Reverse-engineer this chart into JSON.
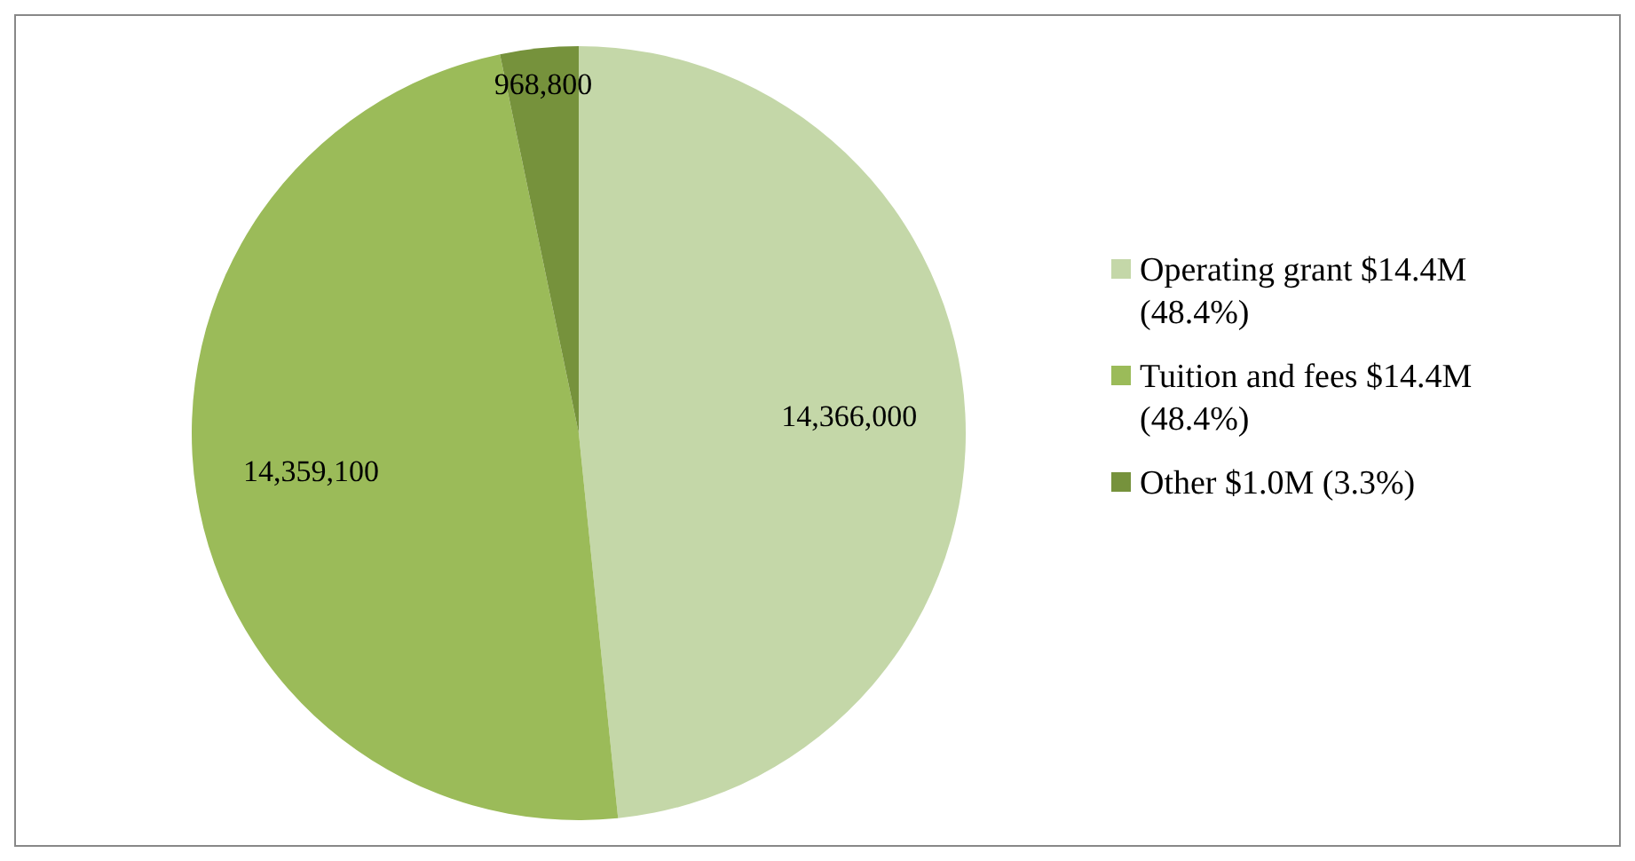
{
  "chart_data": {
    "type": "pie",
    "categories": [
      "Operating grant $14.4M (48.4%)",
      "Tuition and fees $14.4M (48.4%)",
      "Other $1.0M (3.3%)"
    ],
    "values": [
      14366000,
      14359100,
      968800
    ],
    "colors": [
      "#c4d7a8",
      "#9bbb59",
      "#76923c"
    ],
    "value_labels": [
      "14,366,000",
      "14,359,100",
      "968,800"
    ],
    "legend": "right"
  }
}
